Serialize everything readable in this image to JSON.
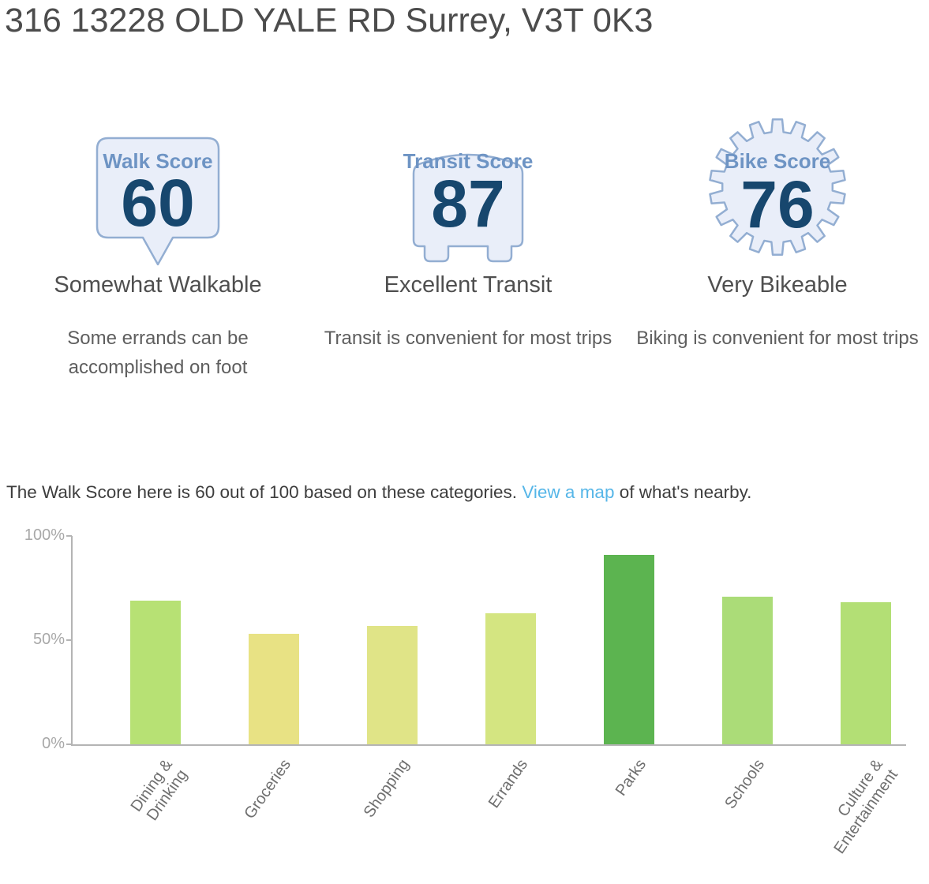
{
  "page": {
    "title": "316 13228 OLD YALE RD Surrey, V3T 0K3"
  },
  "scores": [
    {
      "label": "Walk Score",
      "value": "60",
      "rating": "Somewhat Walkable",
      "description": "Some errands can be accomplished on foot"
    },
    {
      "label": "Transit Score",
      "value": "87",
      "rating": "Excellent Transit",
      "description": "Transit is convenient for most trips"
    },
    {
      "label": "Bike Score",
      "value": "76",
      "rating": "Very Bikeable",
      "description": "Biking is convenient for most trips"
    }
  ],
  "blurb": {
    "before_link": "The Walk Score here is 60 out of 100 based on these categories. ",
    "link_text": "View a map",
    "after_link": " of what's nearby."
  },
  "colors": {
    "badge_fill": "#e9eef9",
    "badge_border": "#93aed2",
    "badge_label": "#6e94c4",
    "badge_number": "#17476e",
    "link": "#56b6e8",
    "axis": "#b4b4b4",
    "ytick_text": "#a8a8a8",
    "xtick_text": "#6f6f6f"
  },
  "chart_data": {
    "type": "bar",
    "title": "",
    "xlabel": "",
    "ylabel": "",
    "categories": [
      "Dining & Drinking",
      "Groceries",
      "Shopping",
      "Errands",
      "Parks",
      "Schools",
      "Culture & Entertainment"
    ],
    "category_lines": [
      [
        "Dining &",
        "Drinking"
      ],
      [
        "Groceries"
      ],
      [
        "Shopping"
      ],
      [
        "Errands"
      ],
      [
        "Parks"
      ],
      [
        "Schools"
      ],
      [
        "Culture &",
        "Entertainment"
      ]
    ],
    "values": [
      69,
      53,
      57,
      63,
      91,
      71,
      68
    ],
    "bar_colors": [
      "#b7e174",
      "#e8e284",
      "#e0e487",
      "#d4e581",
      "#5cb450",
      "#abdc78",
      "#b3df75"
    ],
    "ylim": [
      0,
      100
    ],
    "yticks": [
      {
        "value": 0,
        "label": "0%"
      },
      {
        "value": 50,
        "label": "50%"
      },
      {
        "value": 100,
        "label": "100%"
      }
    ],
    "grid": false,
    "legend": false
  }
}
